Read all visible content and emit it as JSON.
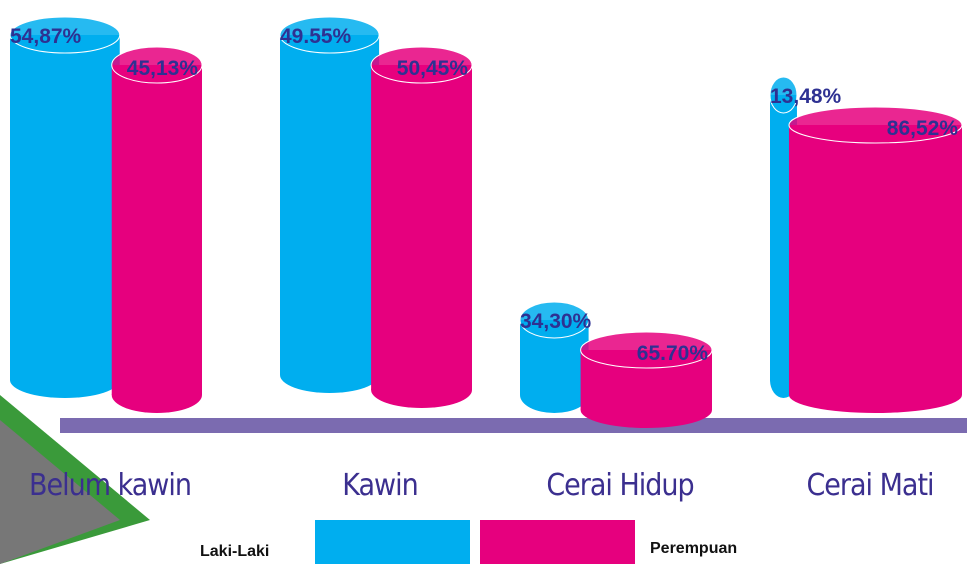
{
  "chart_data": {
    "type": "split-cylinder",
    "categories": [
      "Belum kawin",
      "Kawin",
      "Cerai Hidup",
      "Cerai Mati"
    ],
    "series": [
      {
        "name": "Laki-Laki",
        "color": "#00aeef",
        "values": [
          54.87,
          49.55,
          34.3,
          13.48
        ],
        "value_labels": [
          "54,87%",
          "49.55%",
          "34,30%",
          "13,48%"
        ]
      },
      {
        "name": "Perempuan",
        "color": "#e6007e",
        "values": [
          45.13,
          50.45,
          65.7,
          86.52
        ],
        "value_labels": [
          "45,13%",
          "50,45%",
          "65.70%",
          "86,52%"
        ]
      }
    ]
  }
}
